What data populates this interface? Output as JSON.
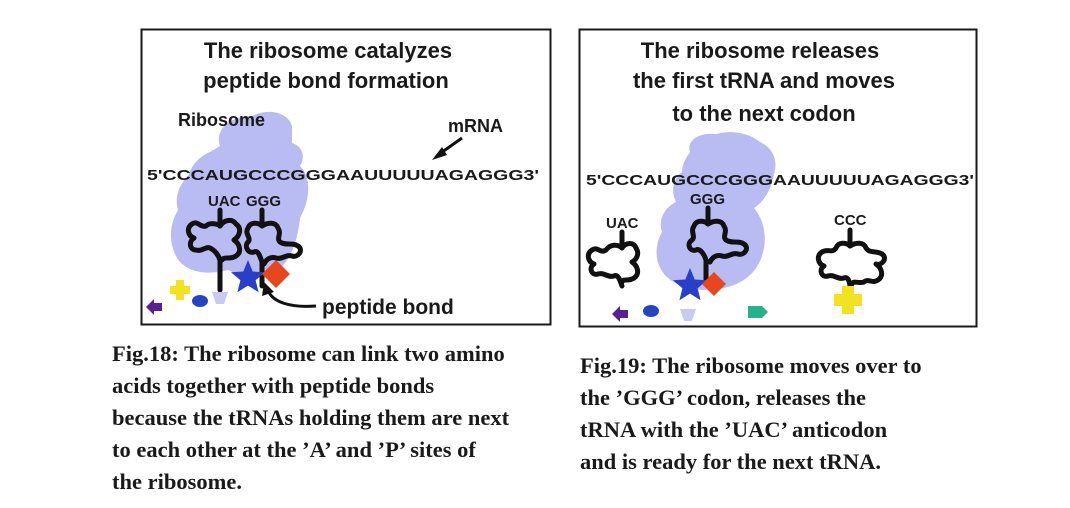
{
  "fig18": {
    "title_line1": "The ribosome catalyzes",
    "title_line2": "peptide bond formation",
    "ribosome_label": "Ribosome",
    "mrna_label": "mRNA",
    "sequence": "5'CCCAUGCCCGGGAAUUUUUAGAGGG3'",
    "anticodon_1": "UAC",
    "anticodon_2": "GGG",
    "peptide_bond_label": "peptide bond",
    "caption_lines": [
      "Fig.18: The ribosome can link two amino",
      "acids together with peptide bonds",
      "because the tRNAs holding them are next",
      "to each other at the ’A’ and ’P’ sites of",
      "the ribosome."
    ]
  },
  "fig19": {
    "title_line1": "The ribosome releases",
    "title_line2": "the first tRNA and moves",
    "title_line3": "to the next codon",
    "sequence": "5'CCCAUGCCCGGGAAUUUUUAGAGGG3'",
    "anticodon_1": "UAC",
    "anticodon_2": "GGG",
    "anticodon_3": "CCC",
    "caption_lines": [
      "Fig.19: The ribosome moves over to",
      "the ’GGG’ codon, releases the",
      "tRNA with the ’UAC’ anticodon",
      "and is ready for the next tRNA."
    ]
  },
  "colors": {
    "ribosome": "#b9bcf2",
    "star": "#2a3fc8",
    "diamond": "#e8461d",
    "yellow": "#f2e21f",
    "purple": "#5a1f96",
    "blue_oval": "#2444c8",
    "lavender": "#c8caf2",
    "teal": "#26b38a",
    "frame": "#1a1a1a"
  }
}
